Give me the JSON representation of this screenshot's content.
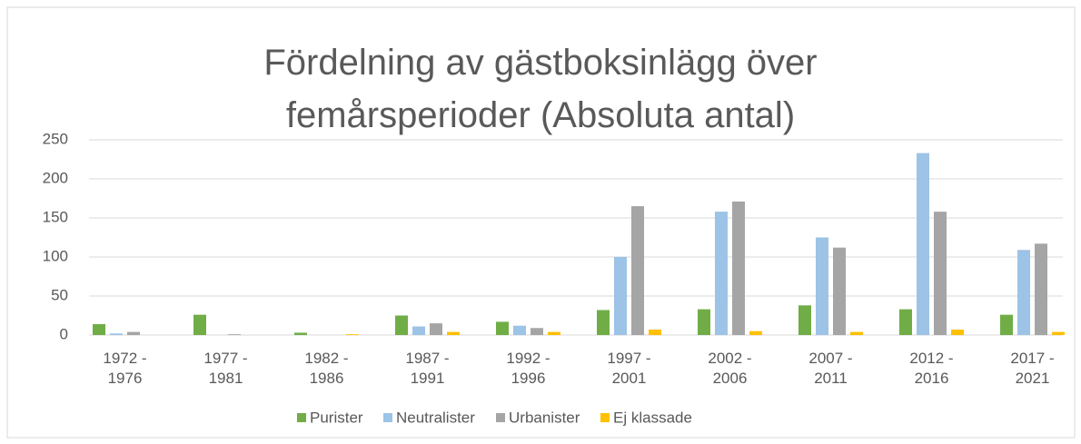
{
  "chart_data": {
    "type": "bar",
    "title": "Fördelning av gästboksinlägg över femårsperioder (Absoluta antal)",
    "categories": [
      "1972 - 1976",
      "1977 - 1981",
      "1982 - 1986",
      "1987 - 1991",
      "1992 - 1996",
      "1997 - 2001",
      "2002 - 2006",
      "2007 - 2011",
      "2012 - 2016",
      "2017 - 2021"
    ],
    "series": [
      {
        "name": "Purister",
        "color": "#70ad47",
        "values": [
          14,
          26,
          3,
          25,
          17,
          32,
          33,
          38,
          33,
          26
        ]
      },
      {
        "name": "Neutralister",
        "color": "#9dc3e6",
        "values": [
          2,
          0,
          0,
          11,
          12,
          100,
          158,
          125,
          233,
          109
        ]
      },
      {
        "name": "Urbanister",
        "color": "#a5a5a5",
        "values": [
          4,
          1,
          0,
          15,
          9,
          165,
          171,
          112,
          158,
          117
        ]
      },
      {
        "name": "Ej klassade",
        "color": "#ffc000",
        "values": [
          0,
          0,
          1,
          4,
          4,
          7,
          5,
          4,
          7,
          4
        ]
      }
    ],
    "ylim": [
      0,
      250
    ],
    "yticks": [
      0,
      50,
      100,
      150,
      200,
      250
    ],
    "grid": true,
    "legend": "bottom"
  }
}
